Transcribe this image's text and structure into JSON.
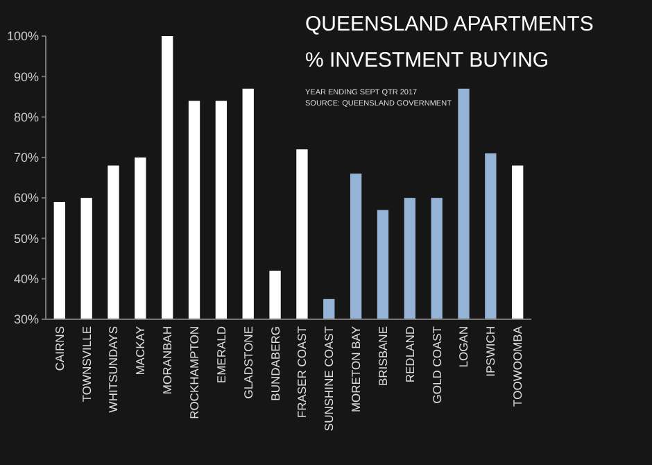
{
  "chart_data": {
    "type": "bar",
    "title": "QUEENSLAND APARTMENTS\n% INVESTMENT BUYING",
    "annotations": [
      "YEAR ENDING SEPT QTR 2017",
      "SOURCE: QUEENSLAND GOVERNMENT"
    ],
    "categories": [
      "CAIRNS",
      "TOWNSVILLE",
      "WHITSUNDAYS",
      "MACKAY",
      "MORANBAH",
      "ROCKHAMPTON",
      "EMERALD",
      "GLADSTONE",
      "BUNDABERG",
      "FRASER COAST",
      "SUNSHINE COAST",
      "MORETON BAY",
      "BRISBANE",
      "REDLAND",
      "GOLD COAST",
      "LOGAN",
      "IPSWICH",
      "TOOWOOMBA"
    ],
    "values": [
      59,
      60,
      68,
      70,
      100,
      84,
      84,
      87,
      42,
      72,
      35,
      66,
      57,
      60,
      60,
      87,
      71,
      68
    ],
    "colors": [
      "#ffffff",
      "#ffffff",
      "#ffffff",
      "#ffffff",
      "#ffffff",
      "#ffffff",
      "#ffffff",
      "#ffffff",
      "#ffffff",
      "#ffffff",
      "#95b3d7",
      "#95b3d7",
      "#95b3d7",
      "#95b3d7",
      "#95b3d7",
      "#95b3d7",
      "#95b3d7",
      "#ffffff"
    ],
    "ylim": [
      30,
      100
    ],
    "yticks": [
      {
        "value": 30,
        "label": "30%"
      },
      {
        "value": 40,
        "label": "40%"
      },
      {
        "value": 50,
        "label": "50%"
      },
      {
        "value": 60,
        "label": "60%"
      },
      {
        "value": 70,
        "label": "70%"
      },
      {
        "value": 80,
        "label": "80%"
      },
      {
        "value": 90,
        "label": "90%"
      },
      {
        "value": 100,
        "label": "100%"
      }
    ],
    "grid": false
  }
}
